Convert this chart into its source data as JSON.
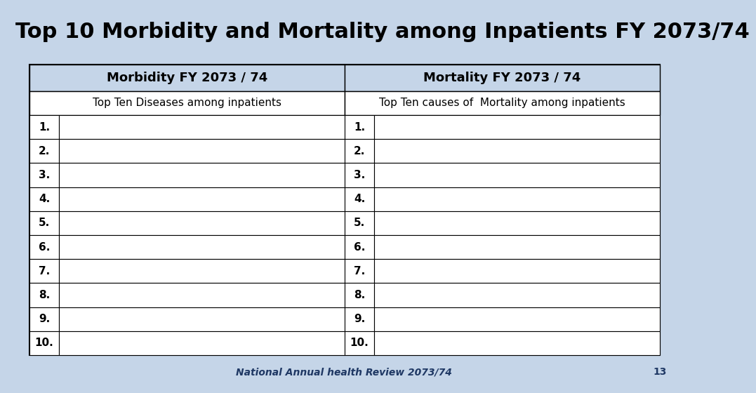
{
  "title": "Top 10 Morbidity and Mortality among Inpatients FY 2073/74",
  "title_fontsize": 22,
  "title_fontweight": "bold",
  "header1": "Morbidity FY 2073 / 74",
  "header2": "Mortality FY 2073 / 74",
  "subheader1": "Top Ten Diseases among inpatients",
  "subheader2": "Top Ten causes of  Mortality among inpatients",
  "rows": [
    "1.",
    "2.",
    "3.",
    "4.",
    "5.",
    "6.",
    "7.",
    "8.",
    "9.",
    "10."
  ],
  "footer_text": "National Annual health Review 2073/74",
  "footer_page": "13",
  "slide_bg_color": "#c5d5e8",
  "table_bg_color": "#ffffff",
  "header_row_bg": "#c5d5e8",
  "border_color": "#000000",
  "title_color": "#000000",
  "footer_color": "#1f3864",
  "row_num_fontsize": 11,
  "header_fontsize": 13,
  "subheader_fontsize": 11,
  "footer_fontsize": 10
}
